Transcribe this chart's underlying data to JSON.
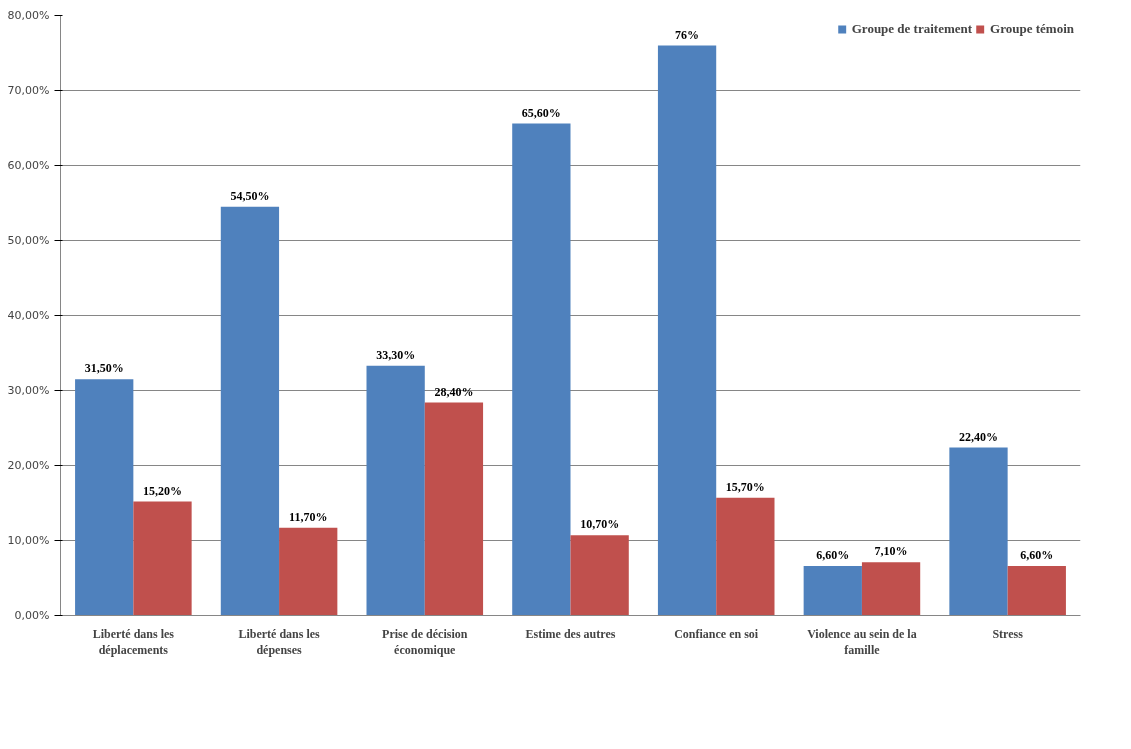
{
  "chart_data": {
    "type": "bar",
    "categories": [
      "Liberté dans les déplacements",
      "Liberté dans les dépenses",
      "Prise de décision économique",
      "Estime des autres",
      "Confiance en soi",
      "Violence au sein de la famille",
      "Stress"
    ],
    "series": [
      {
        "name": "Groupe de traitement",
        "color": "#4f81bd",
        "values": [
          31.5,
          54.5,
          33.3,
          65.6,
          76,
          6.6,
          22.4
        ],
        "value_labels": [
          "31,50%",
          "54,50%",
          "33,30%",
          "65,60%",
          "76%",
          "6,60%",
          "22,40%"
        ]
      },
      {
        "name": "Groupe témoin",
        "color": "#c0504d",
        "values": [
          15.2,
          11.7,
          28.4,
          10.7,
          15.7,
          7.1,
          6.6
        ],
        "value_labels": [
          "15,20%",
          "11,70%",
          "28,40%",
          "10,70%",
          "15,70%",
          "7,10%",
          "6,60%"
        ]
      }
    ],
    "ylim": [
      0,
      80
    ],
    "yticks": [
      {
        "value": 0,
        "label": "0,00%"
      },
      {
        "value": 10,
        "label": "10,00%"
      },
      {
        "value": 20,
        "label": "20,00%"
      },
      {
        "value": 30,
        "label": "30,00%"
      },
      {
        "value": 40,
        "label": "40,00%"
      },
      {
        "value": 50,
        "label": "50,00%"
      },
      {
        "value": 60,
        "label": "60,00%"
      },
      {
        "value": 70,
        "label": "70,00%"
      },
      {
        "value": 80,
        "label": "80,00%"
      }
    ],
    "grid": "y",
    "legend": "top right"
  }
}
